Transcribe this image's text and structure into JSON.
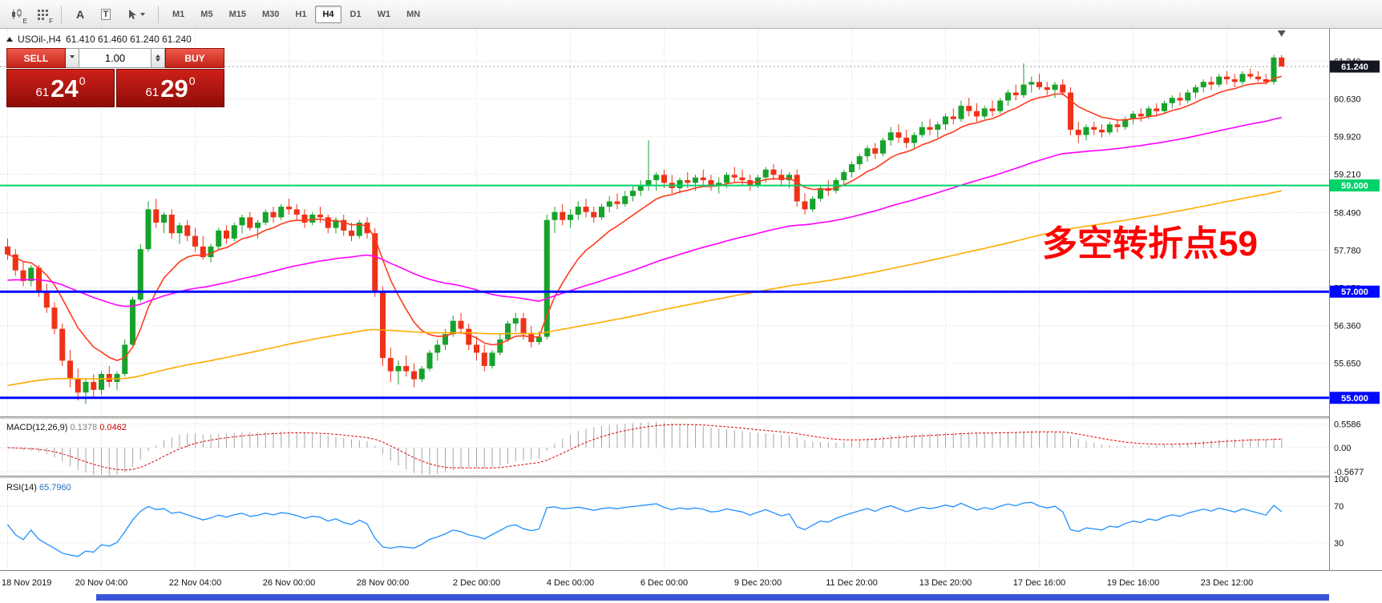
{
  "toolbar": {
    "chart_tools": [
      {
        "name": "candlestick-chart-icon",
        "tag": "E"
      },
      {
        "name": "indicator-grid-icon",
        "tag": "F"
      },
      {
        "name": "label-tool-icon",
        "glyph": "A"
      },
      {
        "name": "text-tool-icon",
        "glyph": "T"
      },
      {
        "name": "drawing-tools-icon",
        "glyph": ""
      }
    ],
    "timeframes": [
      "M1",
      "M5",
      "M15",
      "M30",
      "H1",
      "H4",
      "D1",
      "W1",
      "MN"
    ],
    "active_timeframe": "H4"
  },
  "header": {
    "symbol": "USOil-,H4",
    "ohlc": "61.410 61.460 61.240 61.240"
  },
  "one_click": {
    "sell_label": "SELL",
    "buy_label": "BUY",
    "volume": "1.00",
    "sell_price": {
      "small": "61",
      "big": "24",
      "sup": "0"
    },
    "buy_price": {
      "small": "61",
      "big": "29",
      "sup": "0"
    }
  },
  "annotation": {
    "text": "多空转折点59",
    "color": "#ff0000"
  },
  "chart_data": {
    "type": "candlestick",
    "symbol": "USOil-",
    "timeframe": "H4",
    "open": 61.41,
    "high": 61.46,
    "low": 61.24,
    "close": 61.24,
    "current_price": {
      "value": 61.24,
      "label": "61.240",
      "badge_color": "#14161f"
    },
    "bull_color": "#17a22b",
    "bear_color": "#ef3118",
    "y_axis": {
      "max": 61.95,
      "min": 54.65,
      "ticks": [
        {
          "v": 61.34,
          "t": "61.340"
        },
        {
          "v": 60.63,
          "t": "60.630"
        },
        {
          "v": 59.92,
          "t": "59.920"
        },
        {
          "v": 59.21,
          "t": "59.210"
        },
        {
          "v": 58.49,
          "t": "58.490"
        },
        {
          "v": 57.78,
          "t": "57.780"
        },
        {
          "v": 57.07,
          "t": "57.070"
        },
        {
          "v": 56.36,
          "t": "56.360"
        },
        {
          "v": 55.65,
          "t": "55.650"
        }
      ]
    },
    "levels": [
      {
        "value": 59.0,
        "label": "59.000",
        "color": "#00d26a",
        "width": 2
      },
      {
        "value": 57.0,
        "label": "57.000",
        "color": "#0008ff",
        "width": 3
      },
      {
        "value": 55.0,
        "label": "55.000",
        "color": "#0008ff",
        "width": 3
      }
    ],
    "moving_averages": [
      {
        "period": 10,
        "seed": null,
        "color": "#ff3b1d"
      },
      {
        "period": 60,
        "seed": 57.2,
        "color": "#ff00ff"
      },
      {
        "period": 160,
        "seed": 55.2,
        "color": "#ffaa00"
      }
    ],
    "x_labels": [
      "18 Nov 2019",
      "20 Nov 04:00",
      "22 Nov 04:00",
      "26 Nov 00:00",
      "28 Nov 00:00",
      "2 Dec 00:00",
      "4 Dec 00:00",
      "6 Dec 00:00",
      "9 Dec 20:00",
      "11 Dec 20:00",
      "13 Dec 20:00",
      "17 Dec 16:00",
      "19 Dec 16:00",
      "23 Dec 12:00"
    ],
    "macd": {
      "label": "MACD(12,26,9)",
      "value_main": "0.1378",
      "value_signal": "0.0462",
      "fast": 12,
      "slow": 26,
      "signal_period": 9,
      "range": [
        -0.66,
        0.66
      ],
      "scale": [
        {
          "v": 0.5586,
          "t": "0.5586"
        },
        {
          "v": 0,
          "t": "0.00"
        },
        {
          "v": -0.5677,
          "t": "-0.5677"
        }
      ],
      "histogram_color": "#a6a6a6",
      "signal_color": "#e00000"
    },
    "rsi": {
      "label": "RSI(14)",
      "value": "65.7960",
      "period": 14,
      "range": [
        0,
        100
      ],
      "scale": [
        {
          "v": 100,
          "t": "100"
        },
        {
          "v": 70,
          "t": "70"
        },
        {
          "v": 30,
          "t": "30"
        }
      ],
      "levels": [
        70,
        30
      ],
      "color": "#1e90ff"
    },
    "candles": [
      [
        57.85,
        58.0,
        57.6,
        57.7
      ],
      [
        57.7,
        57.8,
        57.3,
        57.4
      ],
      [
        57.4,
        57.55,
        57.1,
        57.2
      ],
      [
        57.2,
        57.5,
        57.1,
        57.45
      ],
      [
        57.45,
        57.5,
        56.9,
        57.0
      ],
      [
        57.0,
        57.15,
        56.6,
        56.7
      ],
      [
        56.7,
        56.8,
        56.2,
        56.3
      ],
      [
        56.3,
        56.4,
        55.6,
        55.7
      ],
      [
        55.7,
        55.9,
        55.2,
        55.35
      ],
      [
        55.35,
        55.55,
        54.95,
        55.1
      ],
      [
        55.1,
        55.35,
        54.88,
        55.3
      ],
      [
        55.3,
        55.45,
        55.0,
        55.15
      ],
      [
        55.15,
        55.5,
        55.05,
        55.45
      ],
      [
        55.45,
        55.6,
        55.2,
        55.3
      ],
      [
        55.3,
        55.5,
        55.15,
        55.45
      ],
      [
        55.45,
        56.1,
        55.4,
        56.0
      ],
      [
        56.0,
        56.9,
        55.95,
        56.85
      ],
      [
        56.85,
        57.9,
        56.8,
        57.8
      ],
      [
        57.8,
        58.7,
        57.75,
        58.55
      ],
      [
        58.55,
        58.75,
        58.2,
        58.3
      ],
      [
        58.3,
        58.5,
        58.1,
        58.45
      ],
      [
        58.45,
        58.55,
        58.0,
        58.1
      ],
      [
        58.1,
        58.3,
        57.9,
        58.25
      ],
      [
        58.25,
        58.35,
        57.95,
        58.05
      ],
      [
        58.05,
        58.2,
        57.75,
        57.85
      ],
      [
        57.85,
        58.05,
        57.6,
        57.65
      ],
      [
        57.65,
        57.9,
        57.55,
        57.85
      ],
      [
        57.85,
        58.2,
        57.8,
        58.15
      ],
      [
        58.15,
        58.25,
        57.9,
        58.0
      ],
      [
        58.0,
        58.3,
        57.95,
        58.25
      ],
      [
        58.25,
        58.45,
        58.1,
        58.4
      ],
      [
        58.4,
        58.5,
        58.15,
        58.2
      ],
      [
        58.2,
        58.35,
        58.0,
        58.3
      ],
      [
        58.3,
        58.55,
        58.25,
        58.5
      ],
      [
        58.5,
        58.6,
        58.3,
        58.4
      ],
      [
        58.4,
        58.65,
        58.35,
        58.6
      ],
      [
        58.6,
        58.75,
        58.45,
        58.55
      ],
      [
        58.55,
        58.65,
        58.35,
        58.45
      ],
      [
        58.45,
        58.55,
        58.2,
        58.3
      ],
      [
        58.3,
        58.5,
        58.25,
        58.45
      ],
      [
        58.45,
        58.6,
        58.3,
        58.4
      ],
      [
        58.4,
        58.45,
        58.1,
        58.2
      ],
      [
        58.2,
        58.4,
        58.1,
        58.35
      ],
      [
        58.35,
        58.45,
        58.05,
        58.15
      ],
      [
        58.15,
        58.3,
        57.95,
        58.05
      ],
      [
        58.05,
        58.35,
        58.0,
        58.3
      ],
      [
        58.3,
        58.4,
        58.0,
        58.1
      ],
      [
        58.1,
        58.2,
        56.9,
        57.0
      ],
      [
        57.0,
        57.1,
        55.6,
        55.75
      ],
      [
        55.75,
        55.95,
        55.3,
        55.5
      ],
      [
        55.5,
        55.7,
        55.25,
        55.6
      ],
      [
        55.6,
        55.8,
        55.4,
        55.5
      ],
      [
        55.5,
        55.65,
        55.2,
        55.35
      ],
      [
        55.35,
        55.6,
        55.3,
        55.55
      ],
      [
        55.55,
        55.9,
        55.5,
        55.85
      ],
      [
        55.85,
        56.1,
        55.7,
        56.0
      ],
      [
        56.0,
        56.3,
        55.9,
        56.2
      ],
      [
        56.2,
        56.55,
        56.15,
        56.45
      ],
      [
        56.45,
        56.6,
        56.2,
        56.3
      ],
      [
        56.3,
        56.4,
        55.9,
        56.0
      ],
      [
        56.0,
        56.15,
        55.7,
        55.85
      ],
      [
        55.85,
        56.0,
        55.5,
        55.6
      ],
      [
        55.6,
        55.9,
        55.55,
        55.85
      ],
      [
        55.85,
        56.2,
        55.8,
        56.1
      ],
      [
        56.1,
        56.45,
        56.05,
        56.4
      ],
      [
        56.4,
        56.6,
        56.25,
        56.5
      ],
      [
        56.5,
        56.6,
        56.1,
        56.2
      ],
      [
        56.2,
        56.35,
        55.95,
        56.05
      ],
      [
        56.05,
        56.25,
        56.0,
        56.15
      ],
      [
        56.15,
        58.45,
        56.1,
        58.35
      ],
      [
        58.35,
        58.6,
        58.1,
        58.5
      ],
      [
        58.5,
        58.65,
        58.25,
        58.35
      ],
      [
        58.35,
        58.55,
        58.2,
        58.45
      ],
      [
        58.45,
        58.7,
        58.35,
        58.6
      ],
      [
        58.6,
        58.75,
        58.4,
        58.5
      ],
      [
        58.5,
        58.6,
        58.3,
        58.4
      ],
      [
        58.4,
        58.65,
        58.35,
        58.6
      ],
      [
        58.6,
        58.8,
        58.5,
        58.7
      ],
      [
        58.7,
        58.85,
        58.55,
        58.65
      ],
      [
        58.65,
        58.9,
        58.6,
        58.8
      ],
      [
        58.8,
        59.0,
        58.7,
        58.9
      ],
      [
        58.9,
        59.1,
        58.8,
        59.0
      ],
      [
        59.0,
        59.85,
        58.9,
        59.1
      ],
      [
        59.1,
        59.25,
        58.9,
        59.2
      ],
      [
        59.2,
        59.3,
        58.95,
        59.05
      ],
      [
        59.05,
        59.2,
        58.85,
        58.95
      ],
      [
        58.95,
        59.15,
        58.85,
        59.1
      ],
      [
        59.1,
        59.25,
        58.95,
        59.05
      ],
      [
        59.05,
        59.2,
        58.9,
        59.15
      ],
      [
        59.15,
        59.3,
        59.0,
        59.1
      ],
      [
        59.1,
        59.2,
        58.9,
        59.0
      ],
      [
        59.0,
        59.15,
        58.85,
        59.05
      ],
      [
        59.05,
        59.25,
        58.95,
        59.2
      ],
      [
        59.2,
        59.35,
        59.05,
        59.15
      ],
      [
        59.15,
        59.3,
        59.0,
        59.1
      ],
      [
        59.1,
        59.2,
        58.9,
        59.0
      ],
      [
        59.0,
        59.2,
        58.95,
        59.15
      ],
      [
        59.15,
        59.35,
        59.05,
        59.3
      ],
      [
        59.3,
        59.4,
        59.1,
        59.2
      ],
      [
        59.2,
        59.3,
        59.0,
        59.1
      ],
      [
        59.1,
        59.25,
        58.95,
        59.2
      ],
      [
        59.2,
        59.3,
        58.6,
        58.7
      ],
      [
        58.7,
        58.85,
        58.45,
        58.55
      ],
      [
        58.55,
        58.8,
        58.5,
        58.75
      ],
      [
        58.75,
        59.0,
        58.7,
        58.95
      ],
      [
        58.95,
        59.1,
        58.8,
        58.9
      ],
      [
        58.9,
        59.15,
        58.85,
        59.1
      ],
      [
        59.1,
        59.3,
        59.0,
        59.25
      ],
      [
        59.25,
        59.45,
        59.15,
        59.4
      ],
      [
        59.4,
        59.6,
        59.3,
        59.55
      ],
      [
        59.55,
        59.75,
        59.45,
        59.7
      ],
      [
        59.7,
        59.8,
        59.5,
        59.6
      ],
      [
        59.6,
        59.9,
        59.55,
        59.85
      ],
      [
        59.85,
        60.1,
        59.75,
        60.0
      ],
      [
        60.0,
        60.15,
        59.8,
        59.9
      ],
      [
        59.9,
        60.05,
        59.7,
        59.8
      ],
      [
        59.8,
        60.0,
        59.7,
        59.95
      ],
      [
        59.95,
        60.2,
        59.9,
        60.1
      ],
      [
        60.1,
        60.25,
        59.95,
        60.05
      ],
      [
        60.05,
        60.2,
        59.9,
        60.15
      ],
      [
        60.15,
        60.35,
        60.05,
        60.3
      ],
      [
        60.3,
        60.45,
        60.15,
        60.25
      ],
      [
        60.25,
        60.6,
        60.2,
        60.5
      ],
      [
        60.5,
        60.65,
        60.3,
        60.4
      ],
      [
        60.4,
        60.55,
        60.2,
        60.3
      ],
      [
        60.3,
        60.5,
        60.25,
        60.45
      ],
      [
        60.45,
        60.6,
        60.3,
        60.4
      ],
      [
        60.4,
        60.65,
        60.35,
        60.6
      ],
      [
        60.6,
        60.8,
        60.5,
        60.75
      ],
      [
        60.75,
        60.9,
        60.6,
        60.7
      ],
      [
        60.7,
        61.3,
        60.65,
        60.9
      ],
      [
        60.9,
        61.05,
        60.75,
        60.95
      ],
      [
        60.95,
        61.1,
        60.8,
        60.85
      ],
      [
        60.85,
        60.95,
        60.7,
        60.8
      ],
      [
        60.8,
        60.95,
        60.65,
        60.9
      ],
      [
        60.9,
        61.0,
        60.7,
        60.75
      ],
      [
        60.75,
        60.85,
        59.95,
        60.05
      ],
      [
        60.05,
        60.2,
        59.8,
        59.95
      ],
      [
        59.95,
        60.15,
        59.85,
        60.1
      ],
      [
        60.1,
        60.2,
        59.95,
        60.05
      ],
      [
        60.05,
        60.15,
        59.9,
        60.0
      ],
      [
        60.0,
        60.2,
        59.95,
        60.15
      ],
      [
        60.15,
        60.25,
        60.0,
        60.1
      ],
      [
        60.1,
        60.3,
        60.05,
        60.25
      ],
      [
        60.25,
        60.4,
        60.15,
        60.35
      ],
      [
        60.35,
        60.45,
        60.2,
        60.3
      ],
      [
        60.3,
        60.5,
        60.25,
        60.45
      ],
      [
        60.45,
        60.55,
        60.3,
        60.4
      ],
      [
        60.4,
        60.6,
        60.35,
        60.55
      ],
      [
        60.55,
        60.7,
        60.45,
        60.65
      ],
      [
        60.65,
        60.75,
        60.5,
        60.6
      ],
      [
        60.6,
        60.8,
        60.55,
        60.75
      ],
      [
        60.75,
        60.9,
        60.65,
        60.85
      ],
      [
        60.85,
        61.0,
        60.75,
        60.95
      ],
      [
        60.95,
        61.05,
        60.8,
        60.9
      ],
      [
        60.9,
        61.1,
        60.85,
        61.05
      ],
      [
        61.05,
        61.15,
        60.9,
        61.0
      ],
      [
        61.0,
        61.1,
        60.85,
        60.95
      ],
      [
        60.95,
        61.15,
        60.9,
        61.1
      ],
      [
        61.1,
        61.2,
        61.0,
        61.05
      ],
      [
        61.05,
        61.15,
        60.95,
        61.0
      ],
      [
        61.0,
        61.1,
        60.9,
        60.95
      ],
      [
        60.95,
        61.46,
        60.9,
        61.41
      ],
      [
        61.41,
        61.46,
        61.24,
        61.24
      ]
    ]
  }
}
